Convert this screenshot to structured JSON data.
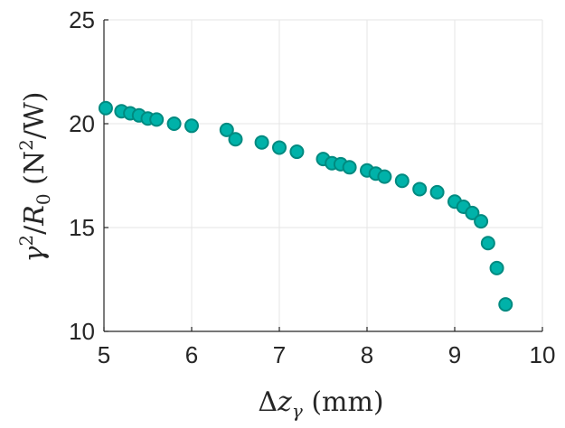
{
  "chart_data": {
    "type": "scatter",
    "xlabel": "Δz_γ (mm)",
    "ylabel": "γ²/R₀ (N²/W)",
    "xlim": [
      5,
      10
    ],
    "ylim": [
      10,
      25
    ],
    "xticks": [
      5,
      6,
      7,
      8,
      9,
      10
    ],
    "yticks": [
      10,
      15,
      20,
      25
    ],
    "xtick_labels": [
      "5",
      "6",
      "7",
      "8",
      "9",
      "10"
    ],
    "ytick_labels": [
      "10",
      "15",
      "20",
      "25"
    ],
    "grid": true,
    "legend": "none",
    "marker_fill": "#00b2a9",
    "marker_edge": "#008a80",
    "series": [
      {
        "x": [
          5.02,
          5.2,
          5.3,
          5.4,
          5.5,
          5.6,
          5.8,
          6.0,
          6.4,
          6.5,
          6.8,
          7.0,
          7.2,
          7.5,
          7.6,
          7.7,
          7.8,
          8.0,
          8.1,
          8.2,
          8.4,
          8.6,
          8.8,
          9.0,
          9.1,
          9.2,
          9.3,
          9.38,
          9.48,
          9.58
        ],
        "y": [
          20.75,
          20.6,
          20.5,
          20.4,
          20.25,
          20.2,
          20.0,
          19.9,
          19.7,
          19.25,
          19.1,
          18.85,
          18.65,
          18.3,
          18.1,
          18.05,
          17.9,
          17.75,
          17.6,
          17.45,
          17.25,
          16.85,
          16.7,
          16.25,
          16.0,
          15.7,
          15.3,
          14.25,
          13.05,
          11.3
        ]
      }
    ]
  }
}
